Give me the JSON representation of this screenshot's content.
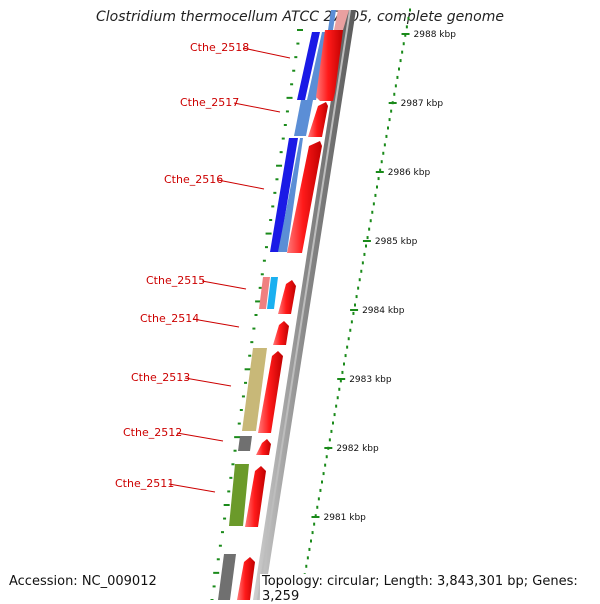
{
  "title": "Clostridium thermocellum ATCC 27405, complete genome",
  "footer": {
    "accession": "Accession: NC_009012",
    "summary": "Topology: circular; Length: 3,843,301 bp; Genes: 3,259"
  },
  "colors": {
    "forward_cds": "#ff1a1a",
    "backbone": "#8a8a8a",
    "ticks": "#1a8a1a",
    "label_line": "#cc0000"
  },
  "scale_labels": [
    "2988 kbp",
    "2987 kbp",
    "2986 kbp",
    "2985 kbp",
    "2984 kbp",
    "2983 kbp",
    "2982 kbp",
    "2981 kbp"
  ],
  "gene_labels": [
    "Cthe_2518",
    "Cthe_2517",
    "Cthe_2516",
    "Cthe_2515",
    "Cthe_2514",
    "Cthe_2513",
    "Cthe_2512",
    "Cthe_2511"
  ],
  "reverse_feature_colors": [
    "#1a1ae6",
    "#5b8ed6",
    "#1a1ae6",
    "#f08080",
    "#1ab0f0",
    "#c8b878",
    "#707070",
    "#6b9a2a",
    "#707070",
    "#5b8ed6"
  ]
}
